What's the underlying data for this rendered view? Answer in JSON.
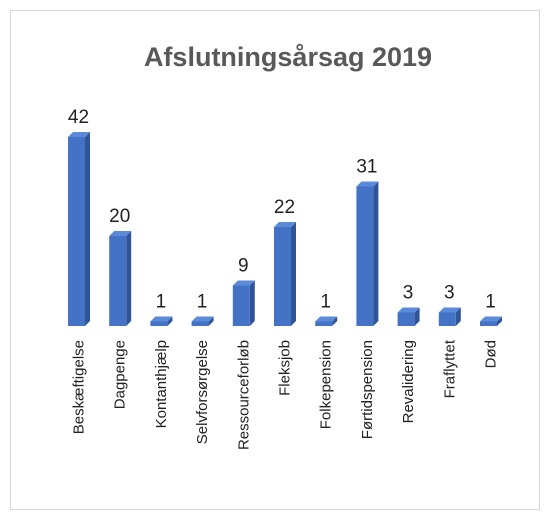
{
  "chart_data": {
    "type": "bar",
    "title": "Afslutningsårsag 2019",
    "categories": [
      "Beskæftigelse",
      "Dagpenge",
      "Kontanthjælp",
      "Selvforsørgelse",
      "Ressourceforløb",
      "Fleksjob",
      "Folkepension",
      "Førtidspension",
      "Revalidering",
      "Fraflyttet",
      "Død"
    ],
    "values": [
      42,
      20,
      1,
      1,
      9,
      22,
      1,
      31,
      3,
      3,
      1
    ],
    "color": "#4472c4"
  }
}
